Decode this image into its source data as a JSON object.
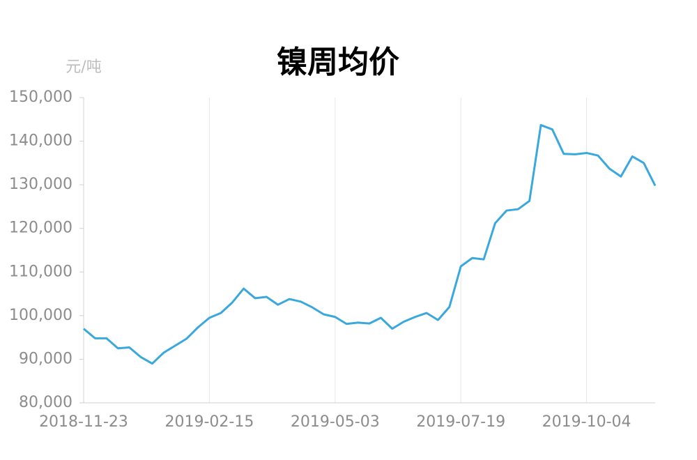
{
  "chart_data": {
    "type": "line",
    "title": "镍周均价",
    "y_unit": "元/吨",
    "categories": [
      "2018-11-23",
      null,
      null,
      null,
      null,
      null,
      null,
      null,
      null,
      null,
      null,
      "2019-02-15",
      null,
      null,
      null,
      null,
      null,
      null,
      null,
      null,
      null,
      null,
      "2019-05-03",
      null,
      null,
      null,
      null,
      null,
      null,
      null,
      null,
      null,
      null,
      "2019-07-19",
      null,
      null,
      null,
      null,
      null,
      null,
      null,
      null,
      null,
      null,
      "2019-10-04",
      null,
      null,
      null,
      null,
      null,
      null
    ],
    "series": [
      {
        "name": "镍周均价",
        "color": "#3aa8dc",
        "values": [
          97000,
          94800,
          94800,
          92500,
          92700,
          90500,
          89000,
          91500,
          93100,
          94700,
          97300,
          99500,
          100600,
          103000,
          106200,
          104000,
          104300,
          102500,
          103800,
          103200,
          101900,
          100300,
          99700,
          98100,
          98400,
          98200,
          99500,
          97000,
          98600,
          99700,
          100600,
          99000,
          102000,
          111300,
          113200,
          112900,
          121200,
          124100,
          124400,
          126300,
          143700,
          142700,
          137100,
          137000,
          137300,
          136700,
          133700,
          131900,
          136500,
          135000,
          129800
        ]
      }
    ],
    "ylim": [
      80000,
      150000
    ],
    "yticks": [
      {
        "value": 80000,
        "label": "80,000"
      },
      {
        "value": 90000,
        "label": "90,000"
      },
      {
        "value": 100000,
        "label": "100,000"
      },
      {
        "value": 110000,
        "label": "110,000"
      },
      {
        "value": 120000,
        "label": "120,000"
      },
      {
        "value": 130000,
        "label": "130,000"
      },
      {
        "value": 140000,
        "label": "140,000"
      },
      {
        "value": 150000,
        "label": "150,000"
      }
    ],
    "grid": true
  }
}
